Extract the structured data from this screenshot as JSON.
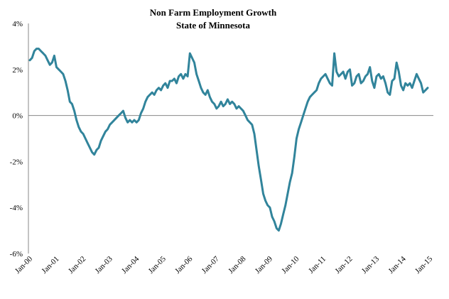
{
  "chart_data": {
    "type": "line",
    "title": "Non Farm Employment Growth",
    "subtitle": "State of Minnesota",
    "xlabel": "",
    "ylabel": "",
    "ylim": [
      -6,
      4
    ],
    "y_ticks": [
      "4%",
      "2%",
      "0%",
      "-2%",
      "-4%",
      "-6%"
    ],
    "x_ticks": [
      "Jan-00",
      "Jan-01",
      "Jan-02",
      "Jan-03",
      "Jan-04",
      "Jan-05",
      "Jan-06",
      "Jan-07",
      "Jan-08",
      "Jan-09",
      "Jan-10",
      "Jan-11",
      "Jan-12",
      "Jan-13",
      "Jan-14",
      "Jan-15"
    ],
    "grid": false,
    "legend": "none",
    "series_color": "#31849b",
    "series": [
      {
        "values": [
          2.4,
          2.5,
          2.8,
          2.9,
          2.9,
          2.8,
          2.7,
          2.6,
          2.4,
          2.2,
          2.3,
          2.6,
          2.1,
          2.0,
          1.9,
          1.8,
          1.5,
          1.1,
          0.6,
          0.5,
          0.2,
          -0.2,
          -0.5,
          -0.7,
          -0.8,
          -1.0,
          -1.2,
          -1.4,
          -1.6,
          -1.7,
          -1.5,
          -1.4,
          -1.1,
          -0.9,
          -0.7,
          -0.6,
          -0.4,
          -0.3,
          -0.2,
          -0.1,
          0.0,
          0.1,
          0.2,
          -0.1,
          -0.3,
          -0.2,
          -0.3,
          -0.2,
          -0.3,
          -0.2,
          0.1,
          0.3,
          0.6,
          0.8,
          0.9,
          1.0,
          0.9,
          1.1,
          1.2,
          1.1,
          1.3,
          1.4,
          1.2,
          1.5,
          1.5,
          1.6,
          1.4,
          1.7,
          1.8,
          1.6,
          1.8,
          1.7,
          2.7,
          2.5,
          2.3,
          1.8,
          1.5,
          1.2,
          1.0,
          0.9,
          1.1,
          0.8,
          0.6,
          0.5,
          0.3,
          0.4,
          0.6,
          0.4,
          0.5,
          0.7,
          0.5,
          0.6,
          0.5,
          0.3,
          0.4,
          0.3,
          0.2,
          0.0,
          -0.2,
          -0.3,
          -0.4,
          -0.8,
          -1.5,
          -2.2,
          -2.8,
          -3.4,
          -3.7,
          -3.9,
          -4.0,
          -4.4,
          -4.6,
          -4.9,
          -5.0,
          -4.7,
          -4.3,
          -3.9,
          -3.4,
          -2.9,
          -2.5,
          -1.8,
          -1.0,
          -0.6,
          -0.3,
          0.0,
          0.3,
          0.6,
          0.8,
          0.9,
          1.0,
          1.1,
          1.4,
          1.6,
          1.7,
          1.8,
          1.6,
          1.4,
          1.3,
          2.7,
          1.9,
          1.7,
          1.8,
          1.9,
          1.6,
          1.9,
          2.0,
          1.3,
          1.4,
          1.7,
          1.8,
          1.4,
          1.5,
          1.7,
          1.8,
          2.1,
          1.5,
          1.2,
          1.7,
          1.8,
          1.6,
          1.7,
          1.4,
          1.0,
          0.9,
          1.5,
          1.6,
          2.3,
          1.9,
          1.3,
          1.1,
          1.4,
          1.3,
          1.4,
          1.2,
          1.5,
          1.8,
          1.6,
          1.4,
          1.0,
          1.1,
          1.2
        ]
      }
    ]
  }
}
